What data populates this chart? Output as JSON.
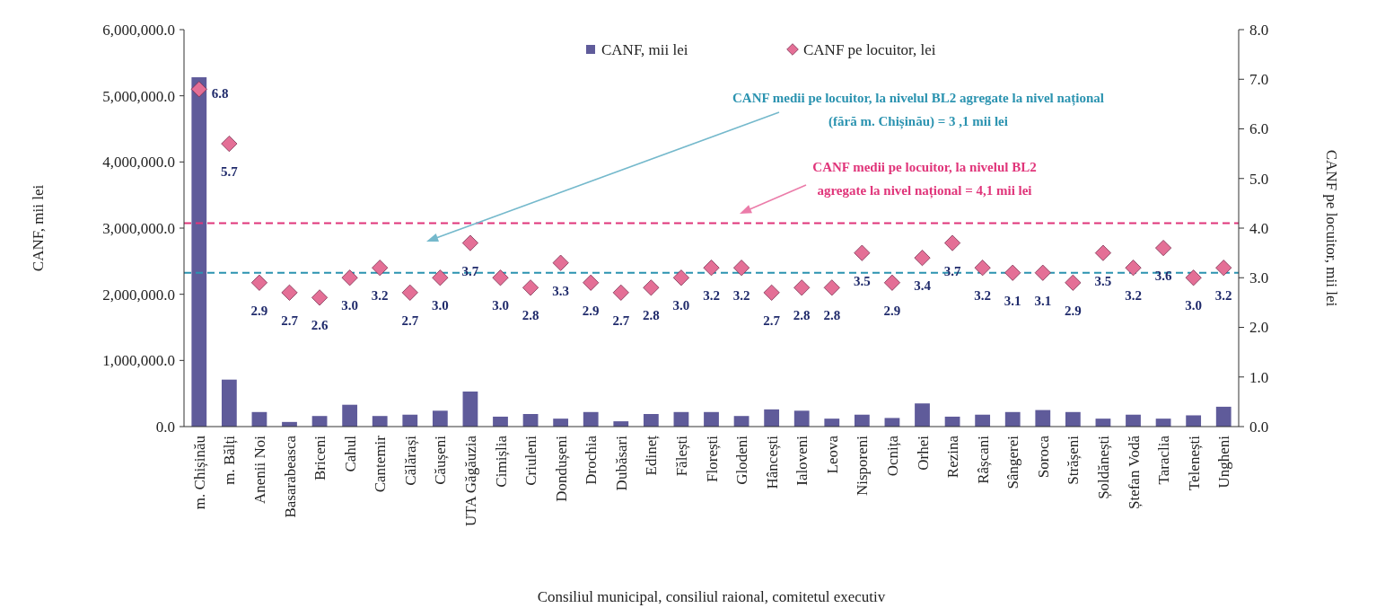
{
  "chart_data": {
    "type": "bar",
    "xlabel": "Consiliul municipal, consiliul raional, comitetul executiv",
    "ylabel": "CANF, mii lei",
    "y2label": "CANF pe locuitor, mii lei",
    "categories": [
      "m. Chișinău",
      "m. Bălți",
      "Anenii Noi",
      "Basarabeasca",
      "Briceni",
      "Cahul",
      "Cantemir",
      "Călărași",
      "Căușeni",
      "UTA Găgăuzia",
      "Cimișlia",
      "Criuleni",
      "Dondușeni",
      "Drochia",
      "Dubăsari",
      "Edineț",
      "Fălești",
      "Florești",
      "Glodeni",
      "Hâncești",
      "Ialoveni",
      "Leova",
      "Nisporeni",
      "Ocnița",
      "Orhei",
      "Rezina",
      "Râșcani",
      "Sângerei",
      "Soroca",
      "Strășeni",
      "Șoldănești",
      "Ștefan Vodă",
      "Taraclia",
      "Telenești",
      "Ungheni"
    ],
    "series": [
      {
        "name": "CANF, mii lei",
        "color": "#5f5b9a",
        "values": [
          5280000,
          710000,
          220000,
          70000,
          160000,
          330000,
          160000,
          180000,
          240000,
          530000,
          150000,
          190000,
          120000,
          220000,
          80000,
          190000,
          220000,
          220000,
          160000,
          260000,
          240000,
          120000,
          180000,
          130000,
          350000,
          150000,
          180000,
          220000,
          250000,
          220000,
          120000,
          180000,
          120000,
          170000,
          300000
        ]
      },
      {
        "name": "CANF pe locuitor, lei",
        "type": "scatter",
        "axis": "y2",
        "color": "#e46f96",
        "marker": "diamond",
        "values": [
          6.8,
          5.7,
          2.9,
          2.7,
          2.6,
          3.0,
          3.2,
          2.7,
          3.0,
          3.7,
          3.0,
          2.8,
          3.3,
          2.9,
          2.7,
          2.8,
          3.0,
          3.2,
          3.2,
          2.7,
          2.8,
          2.8,
          3.5,
          2.9,
          3.4,
          3.7,
          3.2,
          3.1,
          3.1,
          2.9,
          3.5,
          3.2,
          3.6,
          3.0,
          3.2
        ],
        "value_labels": [
          "6.8",
          "5.7",
          "2.9",
          "2.7",
          "2.6",
          "3.0",
          "3.2",
          "2.7",
          "3.0",
          "3.7",
          "3.0",
          "2.8",
          "3.3",
          "2.9",
          "2.7",
          "2.8",
          "3.0",
          "3.2",
          "3.2",
          "2.7",
          "2.8",
          "2.8",
          "3.5",
          "2.9",
          "3.4",
          "3.7",
          "3.2",
          "3.1",
          "3.1",
          "2.9",
          "3.5",
          "3.2",
          "3.6",
          "3.0",
          "3.2"
        ]
      }
    ],
    "ylim": [
      0,
      6000000
    ],
    "yticks": [
      {
        "value": 0,
        "label": "0.0"
      },
      {
        "value": 1000000,
        "label": "1,000,000.0"
      },
      {
        "value": 2000000,
        "label": "2,000,000.0"
      },
      {
        "value": 3000000,
        "label": "3,000,000.0"
      },
      {
        "value": 4000000,
        "label": "4,000,000.0"
      },
      {
        "value": 5000000,
        "label": "5,000,000.0"
      },
      {
        "value": 6000000,
        "label": "6,000,000.0"
      }
    ],
    "y2lim": [
      0,
      8
    ],
    "y2ticks": [
      {
        "value": 0,
        "label": "0.0"
      },
      {
        "value": 1,
        "label": "1.0"
      },
      {
        "value": 2,
        "label": "2.0"
      },
      {
        "value": 3,
        "label": "3.0"
      },
      {
        "value": 4,
        "label": "4.0"
      },
      {
        "value": 5,
        "label": "5.0"
      },
      {
        "value": 6,
        "label": "6.0"
      },
      {
        "value": 7,
        "label": "7.0"
      },
      {
        "value": 8,
        "label": "8.0"
      }
    ],
    "ref_lines": [
      {
        "axis": "y2",
        "value": 3.1,
        "label": "CANF medii pe locuitor, la nivelul BL2 agregate la nivel național (fără m. Chișinău) = 3 ,1 mii lei",
        "color": "#2b93b0",
        "line_style": "dashed"
      },
      {
        "axis": "y2",
        "value": 4.1,
        "label": "CANF medii pe locuitor, la nivelul BL2 agregate la nivel național = 4,1 mii lei",
        "color": "#e0357a",
        "line_style": "dashed"
      }
    ],
    "legend": "top",
    "grid": false
  }
}
